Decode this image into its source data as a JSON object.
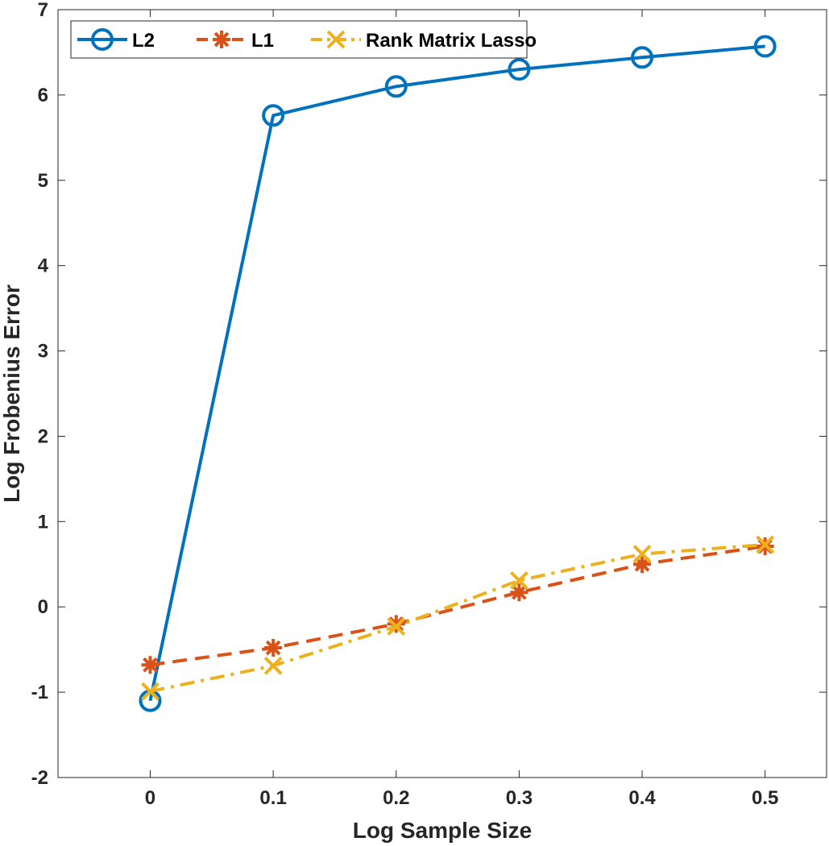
{
  "chart_data": {
    "type": "line",
    "xlabel": "Log Sample Size",
    "ylabel": "Log Frobenius Error",
    "xlim": [
      -0.075,
      0.55
    ],
    "ylim": [
      -2,
      7
    ],
    "xticks": [
      "0",
      "0.1",
      "0.2",
      "0.3",
      "0.4",
      "0.5"
    ],
    "yticks": [
      "-2",
      "-1",
      "0",
      "1",
      "2",
      "3",
      "4",
      "5",
      "6",
      "7"
    ],
    "x": [
      0,
      0.1,
      0.2,
      0.3,
      0.4,
      0.5
    ],
    "grid": false,
    "legend_position": "top-left",
    "series": [
      {
        "name": "L2",
        "values": [
          -1.1,
          5.76,
          6.1,
          6.3,
          6.44,
          6.57
        ],
        "color": "#0072BD",
        "line_style": "solid",
        "marker": "circle"
      },
      {
        "name": "L1",
        "values": [
          -0.68,
          -0.48,
          -0.2,
          0.17,
          0.5,
          0.71
        ],
        "color": "#D95319",
        "line_style": "dashed",
        "marker": "asterisk"
      },
      {
        "name": "Rank Matrix Lasso",
        "values": [
          -0.99,
          -0.69,
          -0.23,
          0.31,
          0.62,
          0.73
        ],
        "color": "#EDB120",
        "line_style": "dashdot",
        "marker": "x"
      }
    ]
  }
}
